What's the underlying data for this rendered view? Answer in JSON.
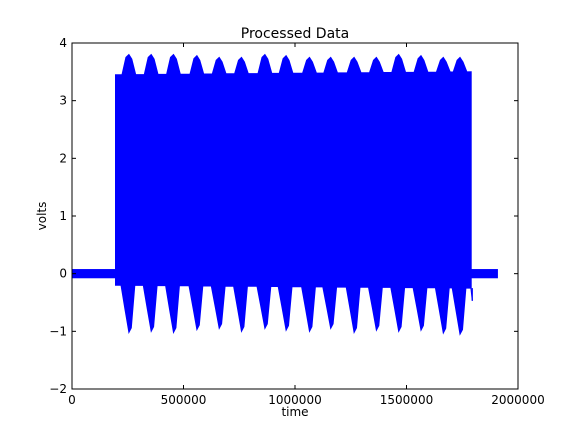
{
  "chart_data": {
    "type": "line",
    "title": "Processed Data",
    "xlabel": "time",
    "ylabel": "volts",
    "xlim": [
      0,
      2000000
    ],
    "ylim": [
      -2,
      4
    ],
    "x_ticks": [
      0,
      500000,
      1000000,
      1500000,
      2000000
    ],
    "x_tick_labels": [
      "0",
      "500000",
      "1000000",
      "1500000",
      "2000000"
    ],
    "y_ticks": [
      -2,
      -1,
      0,
      1,
      2,
      3,
      4
    ],
    "y_tick_labels": [
      "−2",
      "−1",
      "0",
      "1",
      "2",
      "3",
      "4"
    ],
    "grid": false,
    "legend": "none",
    "series": [
      {
        "color": "#0000ff",
        "baseline": {
          "x_start": 0,
          "x_end": 1910000,
          "lower": -0.08,
          "upper": 0.08
        },
        "active_band": {
          "x_start": 195000,
          "x_end": 1790000,
          "upper_start": 3.45,
          "upper_end": 3.5,
          "lower_start": -0.2,
          "lower_end": -0.25
        },
        "bursts": [
          {
            "x": 255000,
            "upper": 3.8,
            "lower": -1.02
          },
          {
            "x": 355000,
            "upper": 3.8,
            "lower": -1.0
          },
          {
            "x": 455000,
            "upper": 3.8,
            "lower": -1.02
          },
          {
            "x": 560000,
            "upper": 3.78,
            "lower": -0.97
          },
          {
            "x": 660000,
            "upper": 3.75,
            "lower": -0.95
          },
          {
            "x": 760000,
            "upper": 3.75,
            "lower": -1.0
          },
          {
            "x": 865000,
            "upper": 3.8,
            "lower": -0.95
          },
          {
            "x": 960000,
            "upper": 3.78,
            "lower": -0.98
          },
          {
            "x": 1065000,
            "upper": 3.75,
            "lower": -1.0
          },
          {
            "x": 1160000,
            "upper": 3.75,
            "lower": -0.95
          },
          {
            "x": 1265000,
            "upper": 3.75,
            "lower": -1.02
          },
          {
            "x": 1365000,
            "upper": 3.75,
            "lower": -0.98
          },
          {
            "x": 1465000,
            "upper": 3.8,
            "lower": -1.0
          },
          {
            "x": 1565000,
            "upper": 3.78,
            "lower": -0.98
          },
          {
            "x": 1665000,
            "upper": 3.75,
            "lower": -1.03
          },
          {
            "x": 1740000,
            "upper": 3.75,
            "lower": -1.05
          }
        ],
        "tail_dip": {
          "x": 1795000,
          "y": -0.47
        }
      }
    ]
  }
}
